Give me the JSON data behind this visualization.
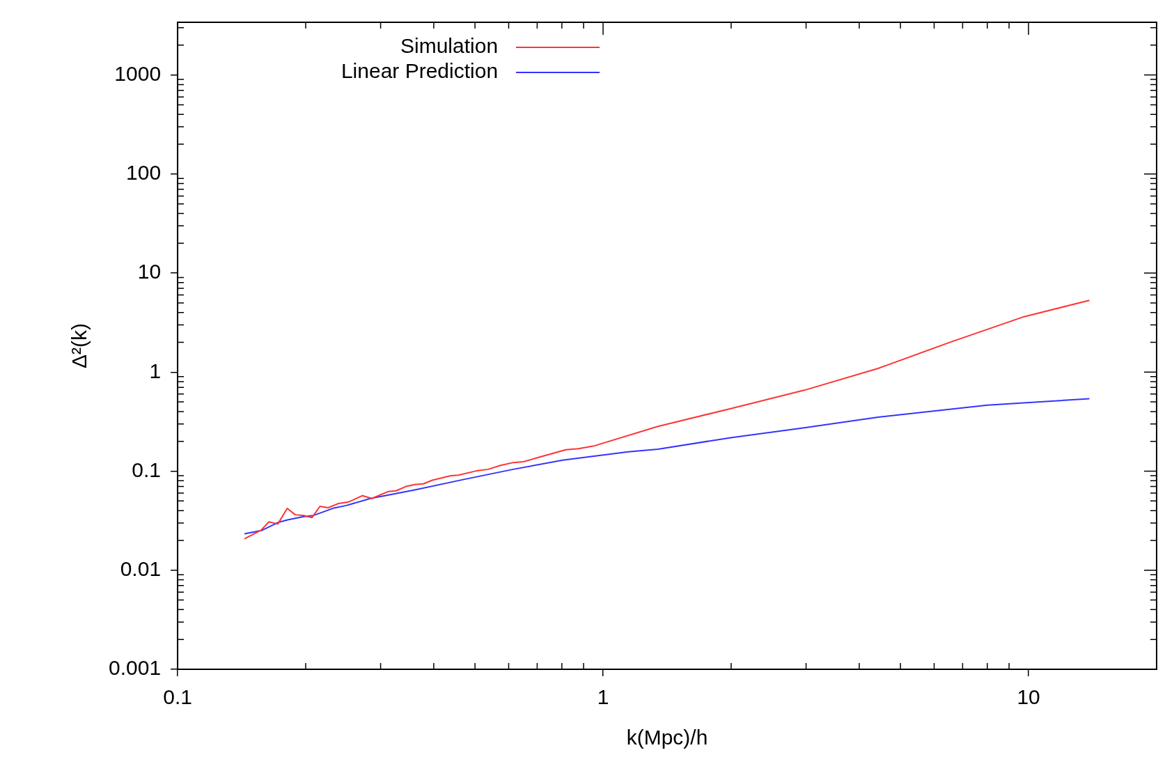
{
  "chart_data": {
    "type": "line",
    "xlabel": "k(Mpc)/h",
    "ylabel": "Δ²(k)",
    "log": "xy",
    "grid": false,
    "legend": "top left",
    "marker": "none",
    "line_style": "solid",
    "xlim": [
      0.1,
      20
    ],
    "xticks": [
      0.1,
      1,
      10
    ],
    "ylim": [
      0.001,
      3400
    ],
    "yticks": [
      0.001,
      0.01,
      0.1,
      1,
      10,
      100,
      1000
    ],
    "series": [
      {
        "name": "Simulation",
        "color": "#ff3333",
        "x": [
          0.1436,
          0.157,
          0.164,
          0.172,
          0.181,
          0.189,
          0.198,
          0.207,
          0.216,
          0.226,
          0.239,
          0.252,
          0.272,
          0.286,
          0.313,
          0.326,
          0.344,
          0.361,
          0.378,
          0.397,
          0.439,
          0.457,
          0.504,
          0.537,
          0.574,
          0.615,
          0.65,
          0.705,
          0.818,
          0.875,
          0.948,
          1.346,
          1.995,
          2.97,
          4.43,
          6.56,
          9.77,
          13.9
        ],
        "values": [
          0.0208,
          0.0253,
          0.0308,
          0.0293,
          0.0421,
          0.0363,
          0.0356,
          0.034,
          0.0442,
          0.0428,
          0.0472,
          0.0488,
          0.0566,
          0.053,
          0.0624,
          0.0633,
          0.07,
          0.0733,
          0.0744,
          0.0811,
          0.09,
          0.0911,
          0.1007,
          0.1044,
          0.1144,
          0.1222,
          0.1244,
          0.1378,
          0.1644,
          0.1689,
          0.1789,
          0.283,
          0.428,
          0.656,
          1.09,
          2.01,
          3.63,
          5.3
        ]
      },
      {
        "name": "Linear Prediction",
        "color": "#3333ff",
        "x": [
          0.1436,
          0.158,
          0.172,
          0.182,
          0.197,
          0.208,
          0.232,
          0.249,
          0.284,
          0.359,
          0.469,
          0.615,
          0.803,
          1.146,
          1.346,
          1.995,
          2.97,
          4.43,
          8.0,
          13.9
        ],
        "values": [
          0.0233,
          0.0253,
          0.0303,
          0.0323,
          0.0346,
          0.0356,
          0.0422,
          0.045,
          0.053,
          0.0644,
          0.0822,
          0.1044,
          0.1289,
          0.1567,
          0.1667,
          0.218,
          0.274,
          0.351,
          0.464,
          0.539
        ]
      }
    ]
  }
}
